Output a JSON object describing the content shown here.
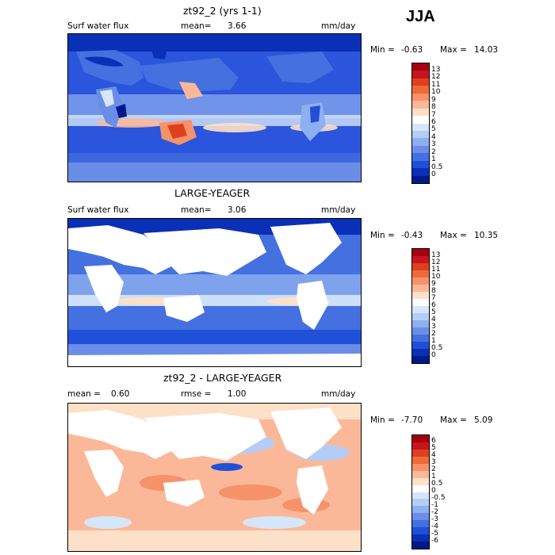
{
  "season": "JJA",
  "panels": [
    {
      "id": "model",
      "title": "zt92_2 (yrs 1-1)",
      "left_label": "Surf water flux",
      "mean_label": "mean=",
      "mean_value": "3.66",
      "units": "mm/day",
      "min_label": "Min =",
      "min_value": "-0.63",
      "max_label": "Max =",
      "max_value": "14.03",
      "colorbar_ticks": [
        "13",
        "12",
        "11",
        "10",
        "9",
        "8",
        "7",
        "6",
        "5",
        "4",
        "3",
        "2",
        "1",
        "0.5",
        "0"
      ],
      "colorbar_colors": [
        "#a50010",
        "#c8141e",
        "#e0401e",
        "#ee6a3a",
        "#f6926a",
        "#fbb898",
        "#fde0c8",
        "#ffffff",
        "#d6e6fa",
        "#b4cdf6",
        "#8eaff0",
        "#6a8ee8",
        "#4470e0",
        "#2050d8",
        "#0a30b8",
        "#001a8c"
      ]
    },
    {
      "id": "obs",
      "title": "LARGE-YEAGER",
      "left_label": "Surf water flux",
      "mean_label": "mean=",
      "mean_value": "3.06",
      "units": "mm/day",
      "min_label": "Min =",
      "min_value": "-0.43",
      "max_label": "Max =",
      "max_value": "10.35",
      "colorbar_ticks": [
        "13",
        "12",
        "11",
        "10",
        "9",
        "8",
        "7",
        "6",
        "5",
        "4",
        "3",
        "2",
        "1",
        "0.5",
        "0"
      ],
      "colorbar_colors": [
        "#a50010",
        "#c8141e",
        "#e0401e",
        "#ee6a3a",
        "#f6926a",
        "#fbb898",
        "#fde0c8",
        "#ffffff",
        "#d6e6fa",
        "#b4cdf6",
        "#8eaff0",
        "#6a8ee8",
        "#4470e0",
        "#2050d8",
        "#0a30b8",
        "#001a8c"
      ]
    },
    {
      "id": "diff",
      "title": "zt92_2 - LARGE-YEAGER",
      "left_label": "mean =",
      "mean_label": "",
      "mean_value": "0.60",
      "rmse_label": "rmse =",
      "rmse_value": "1.00",
      "units": "mm/day",
      "min_label": "Min =",
      "min_value": "-7.70",
      "max_label": "Max =",
      "max_value": "5.09",
      "colorbar_ticks": [
        "6",
        "5",
        "4",
        "3",
        "2",
        "1",
        "0.5",
        "0",
        "-0.5",
        "-1",
        "-2",
        "-3",
        "-4",
        "-5",
        "-6"
      ],
      "colorbar_colors": [
        "#a50010",
        "#c8141e",
        "#e0401e",
        "#ee6a3a",
        "#f6926a",
        "#fbb898",
        "#fde0c8",
        "#ffffff",
        "#d6e6fa",
        "#b4cdf6",
        "#8eaff0",
        "#6a8ee8",
        "#4470e0",
        "#2050d8",
        "#0a30b8",
        "#001a8c"
      ]
    }
  ]
}
